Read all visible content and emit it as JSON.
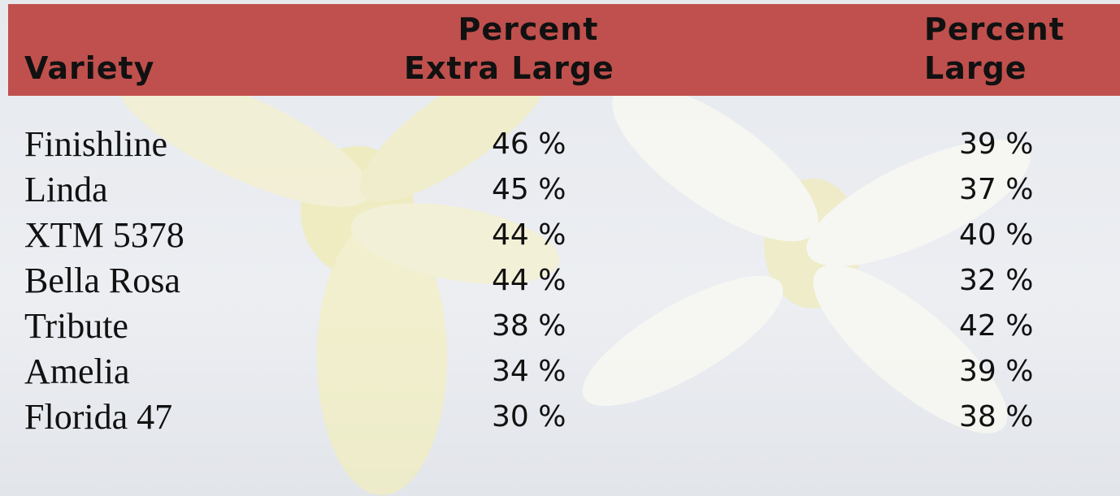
{
  "table": {
    "header": [
      [
        "Variety"
      ],
      [
        "Percent",
        "Extra Large"
      ],
      [
        "Percent",
        "Large"
      ]
    ],
    "rows": [
      [
        "Finishline",
        "46 %",
        "39 %"
      ],
      [
        "Linda",
        "45 %",
        "37 %"
      ],
      [
        "XTM 5378",
        "44 %",
        "40 %"
      ],
      [
        "Bella Rosa",
        "44 %",
        "32 %"
      ],
      [
        "Tribute",
        "38 %",
        "42 %"
      ],
      [
        "Amelia",
        "34 %",
        "39 %"
      ],
      [
        "Florida 47",
        "30 %",
        "38 %"
      ]
    ]
  }
}
